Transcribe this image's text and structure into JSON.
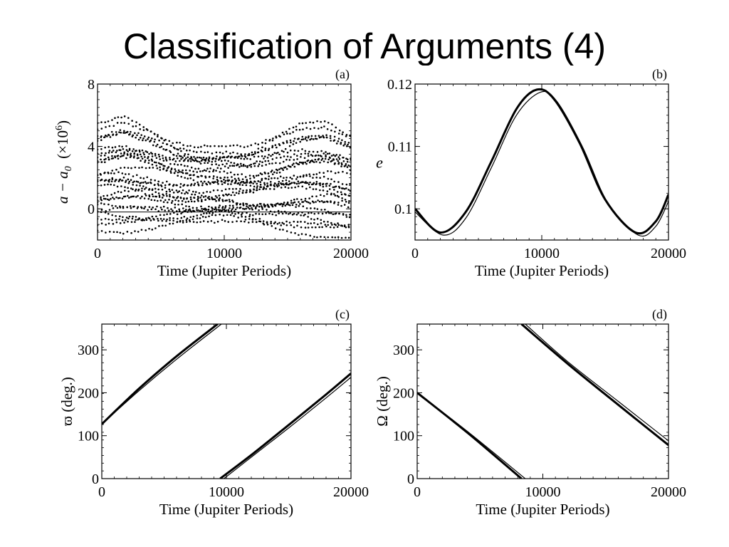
{
  "slide": {
    "title": "Classification of Arguments (4)"
  },
  "chart_data": [
    {
      "panel": "(a)",
      "type": "scatter",
      "xlabel": "Time (Jupiter Periods)",
      "ylabel": "a − a0 (×10^6)",
      "ylabel_parts": {
        "main": "a − a",
        "sub": "0",
        "scale": "(×10",
        "exp": "6",
        "close": ")"
      },
      "xlim": [
        0,
        20000
      ],
      "ylim": [
        -2,
        8
      ],
      "xticks": [
        0,
        10000,
        20000
      ],
      "yticks": [
        0,
        4,
        8
      ],
      "grid": false,
      "reference_line_y": -0.2,
      "series": [
        {
          "values_desc": "upper band oscillating envelope",
          "x": [
            0,
            2000,
            4000,
            6000,
            8000,
            10000,
            12000,
            14000,
            16000,
            18000,
            20000
          ],
          "y": [
            5.2,
            5.8,
            5.3,
            4.4,
            3.9,
            3.8,
            3.7,
            4.4,
            5.2,
            5.5,
            4.9
          ]
        },
        {
          "values_desc": "lower band envelope",
          "x": [
            0,
            2000,
            4000,
            6000,
            8000,
            10000,
            12000,
            14000,
            16000,
            18000,
            20000
          ],
          "y": [
            -1.2,
            -1.3,
            -1.2,
            -1.0,
            -0.8,
            -0.6,
            -0.8,
            -1.1,
            -1.4,
            -1.6,
            -1.7
          ]
        }
      ]
    },
    {
      "panel": "(b)",
      "type": "line",
      "xlabel": "Time (Jupiter Periods)",
      "ylabel": "e",
      "xlim": [
        0,
        20000
      ],
      "ylim": [
        0.095,
        0.12
      ],
      "xticks": [
        0,
        10000,
        20000
      ],
      "yticks": [
        0.1,
        0.11,
        0.12
      ],
      "grid": false,
      "series": [
        {
          "x": [
            0,
            2000,
            4000,
            6000,
            8000,
            9600,
            11000,
            13000,
            15000,
            17400,
            19000,
            20000
          ],
          "y": [
            0.1,
            0.0962,
            0.0995,
            0.1075,
            0.116,
            0.1191,
            0.1175,
            0.1105,
            0.1015,
            0.0962,
            0.098,
            0.1023
          ]
        },
        {
          "x": [
            0,
            2200,
            4000,
            6000,
            8000,
            9900,
            11200,
            13200,
            15200,
            17600,
            19000,
            20000
          ],
          "y": [
            0.0995,
            0.0958,
            0.0985,
            0.1065,
            0.115,
            0.1187,
            0.1172,
            0.11,
            0.101,
            0.0958,
            0.0972,
            0.1012
          ]
        }
      ]
    },
    {
      "panel": "(c)",
      "type": "line",
      "xlabel": "Time (Jupiter Periods)",
      "ylabel": "ϖ (deg.)",
      "xlim": [
        0,
        20000
      ],
      "ylim": [
        0,
        360
      ],
      "xticks": [
        0,
        10000,
        20000
      ],
      "yticks": [
        0,
        100,
        200,
        300
      ],
      "grid": false,
      "series": [
        {
          "x": [
            0,
            3000,
            6000,
            9300
          ],
          "y": [
            127,
            210,
            285,
            360
          ]
        },
        {
          "x": [
            0,
            3000,
            6000,
            9600
          ],
          "y": [
            127,
            205,
            278,
            360
          ]
        },
        {
          "x": [
            9500,
            12000,
            15000,
            18000,
            20000
          ],
          "y": [
            0,
            55,
            125,
            196,
            245
          ]
        },
        {
          "x": [
            9800,
            12000,
            15000,
            18000,
            20000
          ],
          "y": [
            0,
            50,
            118,
            188,
            236
          ]
        }
      ]
    },
    {
      "panel": "(d)",
      "type": "line",
      "xlabel": "Time (Jupiter Periods)",
      "ylabel": "Ω (deg.)",
      "xlim": [
        0,
        20000
      ],
      "ylim": [
        0,
        360
      ],
      "xticks": [
        0,
        10000,
        20000
      ],
      "yticks": [
        0,
        100,
        200,
        300
      ],
      "grid": false,
      "series": [
        {
          "x": [
            0,
            4000,
            8300
          ],
          "y": [
            200,
            107,
            0
          ]
        },
        {
          "x": [
            0,
            4000,
            8600
          ],
          "y": [
            200,
            110,
            0
          ]
        },
        {
          "x": [
            8300,
            12000,
            16000,
            20000
          ],
          "y": [
            360,
            267,
            172,
            78
          ]
        },
        {
          "x": [
            8600,
            12000,
            16000,
            20000
          ],
          "y": [
            360,
            272,
            180,
            88
          ]
        }
      ]
    }
  ]
}
